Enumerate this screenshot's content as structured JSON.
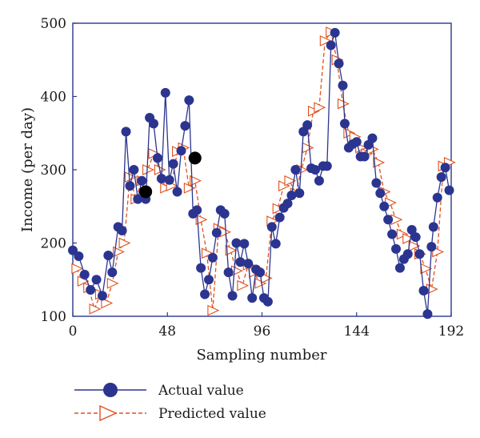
{
  "colors": {
    "actual": "#2b3590",
    "predicted": "#e0501c",
    "highlight": "#000000",
    "frame": "#2b3590"
  },
  "chart_data": {
    "type": "line",
    "xlabel": "Sampling number",
    "ylabel": "Income (per day)",
    "xlim": [
      0,
      192
    ],
    "ylim": [
      100,
      500
    ],
    "xticks": [
      0,
      48,
      96,
      144,
      192
    ],
    "yticks": [
      100,
      200,
      300,
      400,
      500
    ],
    "grid": false,
    "legend_position": "bottom-left",
    "series": [
      {
        "name": "Actual value",
        "style": "solid line with filled circle markers",
        "x": [
          0,
          3,
          6,
          9,
          12,
          15,
          18,
          20,
          23,
          25,
          27,
          29,
          31,
          33,
          35,
          37,
          39,
          41,
          43,
          45,
          47,
          49,
          51,
          53,
          55,
          57,
          59,
          61,
          63,
          65,
          67,
          69,
          71,
          73,
          75,
          77,
          79,
          81,
          83,
          85,
          87,
          89,
          91,
          93,
          95,
          97,
          99,
          101,
          103,
          105,
          107,
          109,
          111,
          113,
          115,
          117,
          119,
          121,
          123,
          125,
          127,
          129,
          131,
          133,
          135,
          137,
          138,
          140,
          142,
          144,
          146,
          148,
          150,
          152,
          154,
          156,
          158,
          160,
          162,
          164,
          166,
          168,
          170,
          172,
          174,
          176,
          178,
          180,
          182,
          183,
          185,
          187,
          189,
          191
        ],
        "y": [
          190,
          182,
          157,
          136,
          150,
          128,
          183,
          160,
          222,
          217,
          352,
          278,
          300,
          260,
          285,
          260,
          371,
          363,
          316,
          288,
          405,
          286,
          308,
          270,
          326,
          360,
          395,
          240,
          245,
          166,
          130,
          150,
          180,
          214,
          245,
          240,
          160,
          128,
          200,
          174,
          199,
          172,
          125,
          164,
          160,
          125,
          120,
          222,
          199,
          235,
          248,
          254,
          265,
          300,
          268,
          352,
          361,
          302,
          300,
          285,
          305,
          305,
          470,
          487,
          445,
          415,
          363,
          330,
          335,
          338,
          318,
          318,
          334,
          343,
          282,
          268,
          250,
          232,
          212,
          192,
          166,
          178,
          185,
          218,
          208,
          185,
          135,
          103,
          195,
          222,
          262,
          290,
          303,
          272
        ]
      },
      {
        "name": "Predicted value",
        "style": "dashed line with open triangle markers",
        "x": [
          2,
          5,
          8,
          11,
          14,
          17,
          20,
          23,
          26,
          29,
          32,
          35,
          38,
          41,
          44,
          47,
          50,
          53,
          56,
          59,
          62,
          65,
          68,
          71,
          74,
          77,
          80,
          83,
          86,
          89,
          92,
          95,
          98,
          101,
          104,
          107,
          110,
          113,
          116,
          119,
          122,
          125,
          128,
          131,
          134,
          137,
          140,
          143,
          146,
          149,
          152,
          155,
          158,
          161,
          164,
          167,
          170,
          173,
          176,
          179,
          182,
          185,
          188,
          191
        ],
        "y": [
          165,
          148,
          139,
          110,
          130,
          118,
          145,
          188,
          200,
          290,
          260,
          285,
          300,
          322,
          300,
          275,
          278,
          325,
          330,
          275,
          285,
          232,
          186,
          108,
          220,
          215,
          190,
          162,
          142,
          170,
          160,
          145,
          152,
          230,
          247,
          278,
          285,
          268,
          300,
          330,
          380,
          385,
          476,
          488,
          450,
          390,
          350,
          345,
          330,
          322,
          328,
          310,
          270,
          255,
          232,
          212,
          206,
          196,
          185,
          165,
          137,
          188,
          305,
          310
        ]
      }
    ],
    "highlights": [
      {
        "x": 37,
        "y": 270
      },
      {
        "x": 62,
        "y": 316
      }
    ]
  }
}
